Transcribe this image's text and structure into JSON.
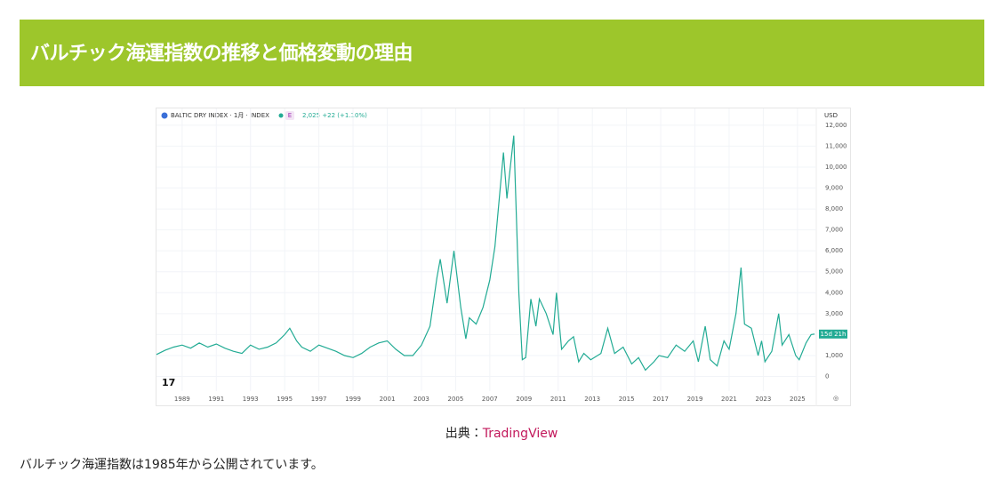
{
  "header": {
    "title": "バルチック海運指数の推移と価格変動の理由"
  },
  "chart_data": {
    "type": "line",
    "symbol": "BALTIC DRY INDEX · 1月 · INDEX",
    "badge": "E",
    "quote": "2,025 +22 (+1.10%)",
    "currency": "USD",
    "price_label": "15d 21h",
    "color": "#22ab94",
    "grid": true,
    "x": [
      1987.5,
      1988,
      1988.5,
      1989,
      1989.5,
      1990,
      1990.5,
      1991,
      1991.5,
      1992,
      1992.5,
      1993,
      1993.5,
      1994,
      1994.5,
      1995,
      1995.3,
      1995.7,
      1996,
      1996.5,
      1997,
      1997.5,
      1998,
      1998.5,
      1999,
      1999.5,
      2000,
      2000.5,
      2001,
      2001.5,
      2002,
      2002.5,
      2003,
      2003.5,
      2003.9,
      2004.1,
      2004.5,
      2004.9,
      2005.3,
      2005.6,
      2005.8,
      2006.2,
      2006.6,
      2007,
      2007.3,
      2007.8,
      2008.0,
      2008.2,
      2008.4,
      2008.7,
      2008.9,
      2009.1,
      2009.4,
      2009.7,
      2009.9,
      2010.3,
      2010.7,
      2010.9,
      2011.2,
      2011.6,
      2011.9,
      2012.2,
      2012.5,
      2012.9,
      2013.5,
      2013.9,
      2014.3,
      2014.8,
      2015.3,
      2015.7,
      2016.1,
      2016.6,
      2016.9,
      2017.4,
      2017.9,
      2018.4,
      2018.9,
      2019.2,
      2019.6,
      2019.9,
      2020.3,
      2020.7,
      2021.0,
      2021.4,
      2021.7,
      2021.9,
      2022.3,
      2022.7,
      2022.9,
      2023.1,
      2023.5,
      2023.9,
      2024.1,
      2024.5,
      2024.9,
      2025.1,
      2025.5,
      2025.8,
      2026.0
    ],
    "values": [
      1050,
      1250,
      1400,
      1500,
      1350,
      1600,
      1400,
      1550,
      1350,
      1200,
      1100,
      1500,
      1300,
      1400,
      1600,
      2000,
      2300,
      1700,
      1400,
      1200,
      1500,
      1350,
      1200,
      1000,
      900,
      1100,
      1400,
      1600,
      1700,
      1300,
      1000,
      1000,
      1500,
      2400,
      4700,
      5600,
      3500,
      6000,
      3300,
      1800,
      2800,
      2500,
      3300,
      4600,
      6200,
      10700,
      8500,
      10000,
      11500,
      4000,
      800,
      900,
      3700,
      2400,
      3700,
      3000,
      2000,
      4000,
      1300,
      1700,
      1900,
      700,
      1100,
      800,
      1100,
      2300,
      1100,
      1400,
      600,
      900,
      300,
      700,
      1000,
      900,
      1500,
      1200,
      1700,
      700,
      2400,
      800,
      500,
      1700,
      1300,
      3000,
      5200,
      2500,
      2300,
      1000,
      1700,
      700,
      1200,
      3000,
      1500,
      2000,
      1000,
      800,
      1600,
      2000,
      2025
    ],
    "xlim": [
      1987.5,
      2026.1
    ],
    "ylim": [
      -700,
      12800
    ],
    "xticks": [
      1989,
      1991,
      1993,
      1995,
      1997,
      1999,
      2001,
      2003,
      2005,
      2007,
      2009,
      2011,
      2013,
      2015,
      2017,
      2019,
      2021,
      2023,
      2025
    ],
    "yticks": [
      0,
      {
        "value": 1000,
        "label": "1,000"
      },
      {
        "value": 2000,
        "label": "2,000"
      },
      {
        "value": 3000,
        "label": "3,000"
      },
      {
        "value": 4000,
        "label": "4,000"
      },
      {
        "value": 5000,
        "label": "5,000"
      },
      {
        "value": 6000,
        "label": "6,000"
      },
      {
        "value": 7000,
        "label": "7,000"
      },
      {
        "value": 8000,
        "label": "8,000"
      },
      {
        "value": 9000,
        "label": "9,000"
      },
      {
        "value": 10000,
        "label": "10,000"
      },
      {
        "value": 11000,
        "label": "11,000"
      },
      {
        "value": 12000,
        "label": "12,000"
      }
    ]
  },
  "caption": {
    "prefix": "出典：",
    "link": "TradingView"
  },
  "body": {
    "text": "バルチック海運指数は1985年から公開されています。"
  }
}
